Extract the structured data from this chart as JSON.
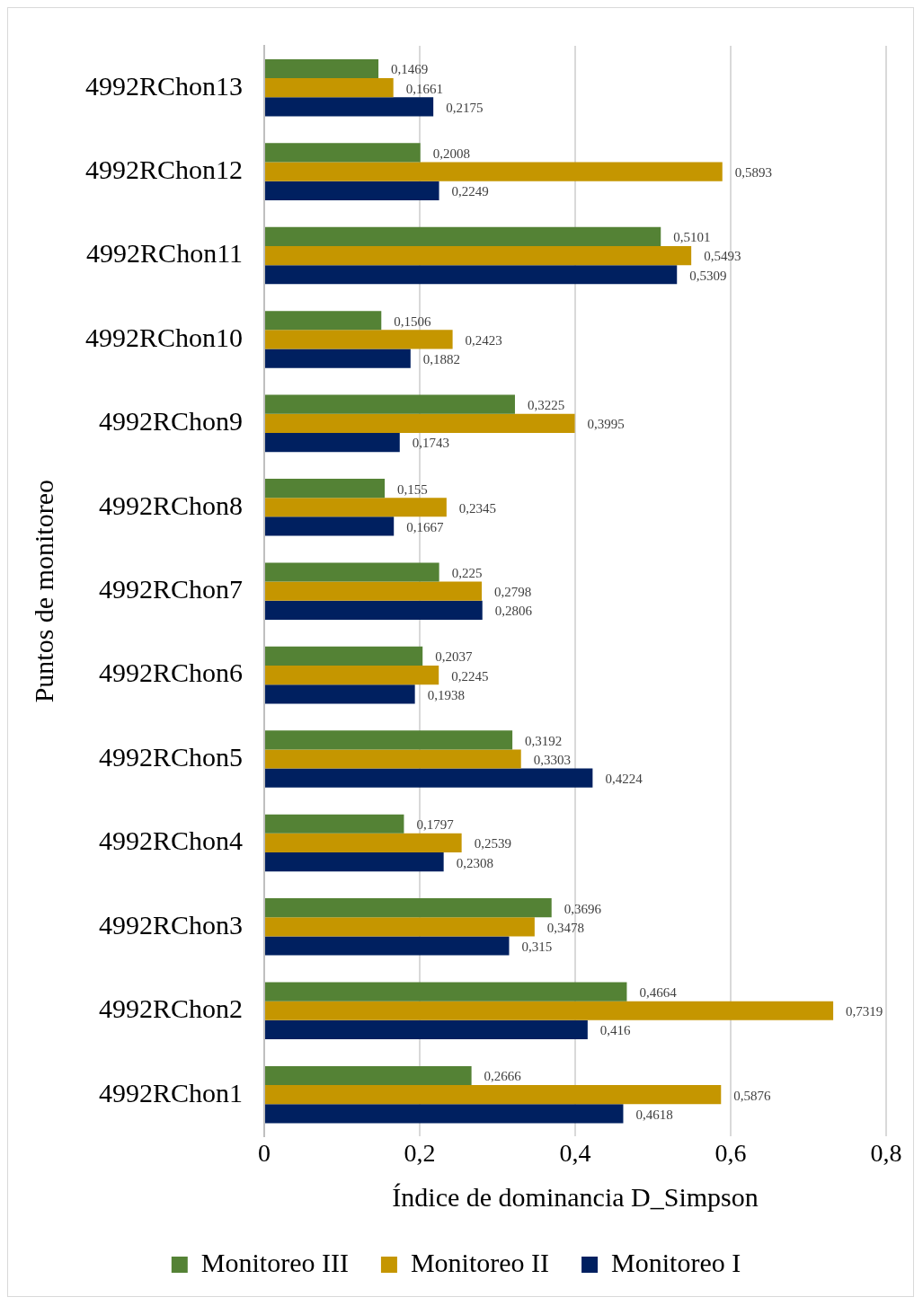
{
  "chart_data": {
    "type": "bar",
    "orientation": "horizontal",
    "xlabel": "Índice de dominancia D_Simpson",
    "ylabel": "Puntos de monitoreo",
    "categories": [
      "4992RChon13",
      "4992RChon12",
      "4992RChon11",
      "4992RChon10",
      "4992RChon9",
      "4992RChon8",
      "4992RChon7",
      "4992RChon6",
      "4992RChon5",
      "4992RChon4",
      "4992RChon3",
      "4992RChon2",
      "4992RChon1"
    ],
    "series": [
      {
        "name": "Monitoreo III",
        "color": "#548235",
        "values": [
          0.1469,
          0.2008,
          0.5101,
          0.1506,
          0.3225,
          0.155,
          0.225,
          0.2037,
          0.3192,
          0.1797,
          0.3696,
          0.4664,
          0.2666
        ],
        "value_labels": [
          "0,1469",
          "0,2008",
          "0,5101",
          "0,1506",
          "0,3225",
          "0,155",
          "0,225",
          "0,2037",
          "0,3192",
          "0,1797",
          "0,3696",
          "0,4664",
          "0,2666"
        ]
      },
      {
        "name": "Monitoreo II",
        "color": "#c59600",
        "values": [
          0.1661,
          0.5893,
          0.5493,
          0.2423,
          0.3995,
          0.2345,
          0.2798,
          0.2245,
          0.3303,
          0.2539,
          0.3478,
          0.7319,
          0.5876
        ],
        "value_labels": [
          "0,1661",
          "0,5893",
          "0,5493",
          "0,2423",
          "0,3995",
          "0,2345",
          "0,2798",
          "0,2245",
          "0,3303",
          "0,2539",
          "0,3478",
          "0,7319",
          "0,5876"
        ]
      },
      {
        "name": "Monitoreo I",
        "color": "#002060",
        "values": [
          0.2175,
          0.2249,
          0.5309,
          0.1882,
          0.1743,
          0.1667,
          0.2806,
          0.1938,
          0.4224,
          0.2308,
          0.315,
          0.416,
          0.4618
        ],
        "value_labels": [
          "0,2175",
          "0,2249",
          "0,5309",
          "0,1882",
          "0,1743",
          "0,1667",
          "0,2806",
          "0,1938",
          "0,4224",
          "0,2308",
          "0,315",
          "0,416",
          "0,4618"
        ]
      }
    ],
    "xlim": [
      0,
      0.8
    ],
    "xticks": [
      0,
      {
        "value": 0.2,
        "label": "0,2"
      },
      {
        "value": 0.4,
        "label": "0,4"
      },
      {
        "value": 0.6,
        "label": "0,6"
      },
      {
        "value": 0.8,
        "label": "0,8"
      }
    ],
    "grid": "x",
    "legend": "bottom"
  }
}
